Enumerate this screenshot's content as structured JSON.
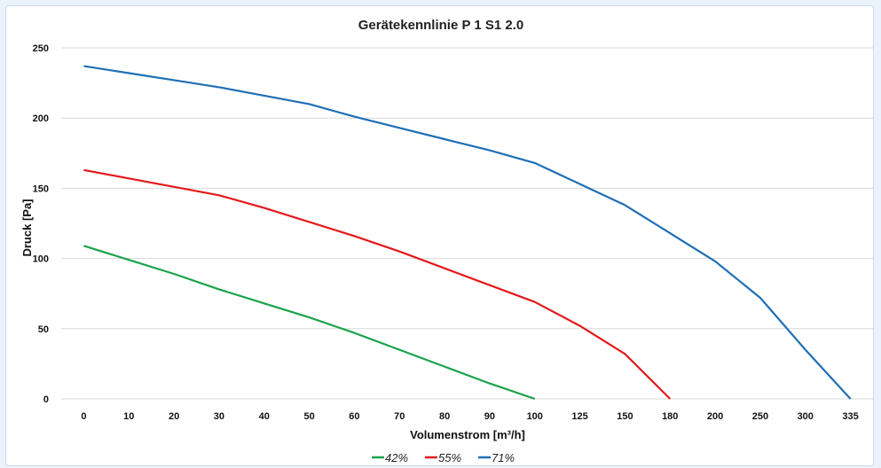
{
  "chart_data": {
    "type": "line",
    "title": "Gerätekennlinie P 1 S1 2.0",
    "xlabel": "Volumenstrom [m³/h]",
    "ylabel": "Druck [Pa]",
    "categories": [
      "0",
      "10",
      "20",
      "30",
      "40",
      "50",
      "60",
      "70",
      "80",
      "90",
      "100",
      "125",
      "150",
      "180",
      "200",
      "250",
      "300",
      "335"
    ],
    "ylim": [
      0,
      250
    ],
    "yticks": [
      "0",
      "50",
      "100",
      "150",
      "200",
      "250"
    ],
    "grid": true,
    "legend_position": "bottom",
    "series": [
      {
        "name": "42%",
        "color": "#1aa34a",
        "values": [
          109,
          99,
          89,
          78,
          68,
          58,
          47,
          35,
          23,
          11,
          0,
          null,
          null,
          null,
          null,
          null,
          null,
          null
        ]
      },
      {
        "name": "55%",
        "color": "#e31a1c",
        "values": [
          163,
          157,
          151,
          145,
          136,
          126,
          116,
          105,
          93,
          81,
          69,
          52,
          32,
          0,
          null,
          null,
          null,
          null
        ]
      },
      {
        "name": "71%",
        "color": "#1f6fb5",
        "values": [
          237,
          232,
          227,
          222,
          216,
          210,
          201,
          193,
          185,
          177,
          168,
          153,
          138,
          118,
          98,
          72,
          35,
          0
        ]
      }
    ]
  }
}
